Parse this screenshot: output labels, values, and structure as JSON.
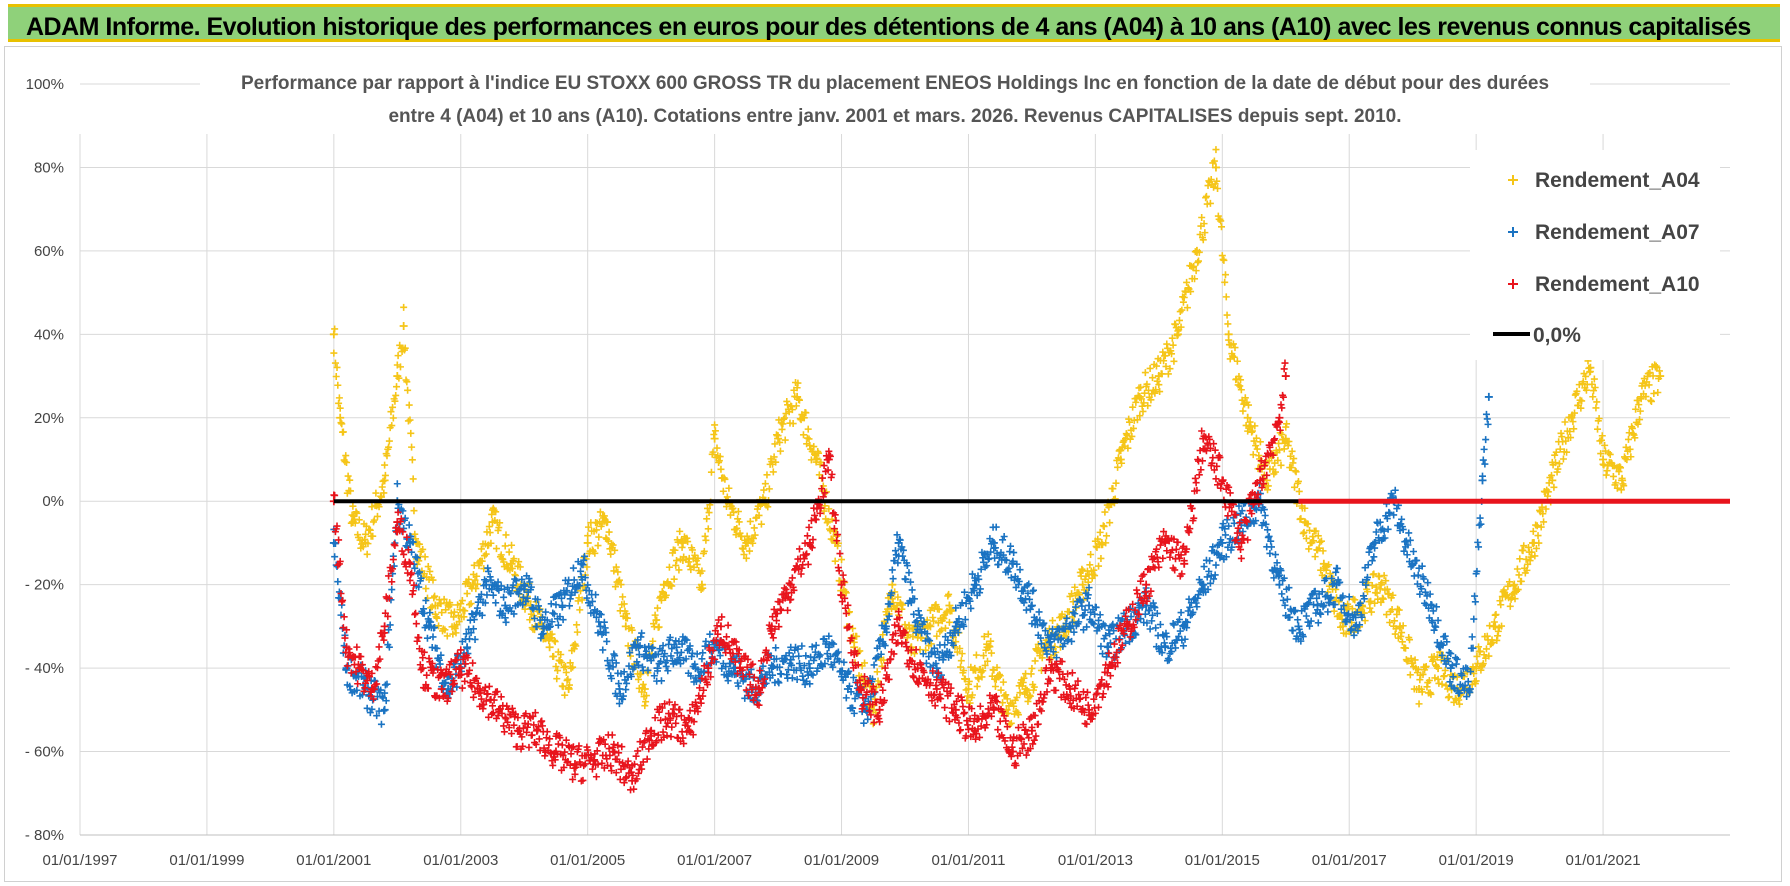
{
  "header": {
    "title": "ADAM Informe. Evolution historique des performances en euros pour des détentions de 4 ans (A04) à 10 ans (A10) avec les revenus connus capitalisés"
  },
  "colors": {
    "a04": "#f5c518",
    "a07": "#1a73c2",
    "a10": "#e8141c",
    "zero": "#000000",
    "banner": "#8fd17a",
    "banner_border": "#e8c100"
  },
  "chart_data": {
    "type": "scatter",
    "title_line1": "Performance par rapport à l'indice EU STOXX 600 GROSS TR  du placement ENEOS Holdings Inc en fonction de la date de début pour des durées",
    "title_line2": "entre 4 (A04) et 10 ans (A10).  Cotations entre janv. 2001 et mars. 2026. Revenus CAPITALISES depuis sept. 2010.",
    "xlim": [
      1997.0,
      2023.0
    ],
    "ylim": [
      -80,
      100
    ],
    "x_ticks": [
      1997,
      1999,
      2001,
      2003,
      2005,
      2007,
      2009,
      2011,
      2013,
      2015,
      2017,
      2019,
      2021
    ],
    "x_tick_labels": [
      "01/01/1997",
      "01/01/1999",
      "01/01/2001",
      "01/01/2003",
      "01/01/2005",
      "01/01/2007",
      "01/01/2009",
      "01/01/2011",
      "01/01/2013",
      "01/01/2015",
      "01/01/2017",
      "01/01/2019",
      "01/01/2021"
    ],
    "y_ticks": [
      100,
      80,
      60,
      40,
      20,
      0,
      -20,
      -40,
      -60,
      -80
    ],
    "y_tick_labels": [
      "100%",
      "80%",
      "60%",
      "40%",
      "20%",
      "0%",
      "- 20%",
      "- 40%",
      "- 60%",
      "- 80%"
    ],
    "legend": {
      "position": "top-right",
      "zero_label": "0,0%"
    },
    "series": [
      {
        "name": "Rendement_A04",
        "key": "a04",
        "points": [
          [
            2001.0,
            40
          ],
          [
            2001.1,
            20
          ],
          [
            2001.3,
            -5
          ],
          [
            2001.5,
            -10
          ],
          [
            2001.8,
            5
          ],
          [
            2002.0,
            30
          ],
          [
            2002.1,
            42
          ],
          [
            2002.3,
            -10
          ],
          [
            2002.6,
            -25
          ],
          [
            2002.9,
            -30
          ],
          [
            2003.2,
            -20
          ],
          [
            2003.5,
            -5
          ],
          [
            2003.8,
            -15
          ],
          [
            2004.1,
            -25
          ],
          [
            2004.4,
            -35
          ],
          [
            2004.7,
            -45
          ],
          [
            2005.0,
            -10
          ],
          [
            2005.3,
            -5
          ],
          [
            2005.6,
            -30
          ],
          [
            2005.9,
            -45
          ],
          [
            2006.2,
            -20
          ],
          [
            2006.5,
            -10
          ],
          [
            2006.8,
            -20
          ],
          [
            2007.0,
            15
          ],
          [
            2007.2,
            0
          ],
          [
            2007.5,
            -10
          ],
          [
            2007.8,
            0
          ],
          [
            2008.0,
            15
          ],
          [
            2008.3,
            25
          ],
          [
            2008.6,
            10
          ],
          [
            2008.9,
            -10
          ],
          [
            2009.2,
            -35
          ],
          [
            2009.5,
            -50
          ],
          [
            2009.8,
            -20
          ],
          [
            2010.1,
            -35
          ],
          [
            2010.4,
            -30
          ],
          [
            2010.7,
            -25
          ],
          [
            2011.0,
            -45
          ],
          [
            2011.3,
            -35
          ],
          [
            2011.6,
            -50
          ],
          [
            2011.9,
            -45
          ],
          [
            2012.2,
            -35
          ],
          [
            2012.5,
            -30
          ],
          [
            2012.8,
            -20
          ],
          [
            2013.1,
            -10
          ],
          [
            2013.4,
            10
          ],
          [
            2013.7,
            25
          ],
          [
            2014.0,
            30
          ],
          [
            2014.3,
            40
          ],
          [
            2014.6,
            60
          ],
          [
            2014.9,
            80
          ],
          [
            2015.1,
            40
          ],
          [
            2015.4,
            20
          ],
          [
            2015.7,
            5
          ],
          [
            2016.0,
            15
          ],
          [
            2016.3,
            -5
          ],
          [
            2016.6,
            -15
          ],
          [
            2016.9,
            -30
          ],
          [
            2017.2,
            -25
          ],
          [
            2017.5,
            -20
          ],
          [
            2017.8,
            -30
          ],
          [
            2018.1,
            -45
          ],
          [
            2018.4,
            -40
          ],
          [
            2018.7,
            -45
          ],
          [
            2019.0,
            -40
          ],
          [
            2019.3,
            -30
          ],
          [
            2019.6,
            -20
          ],
          [
            2019.9,
            -10
          ],
          [
            2020.2,
            5
          ],
          [
            2020.5,
            20
          ],
          [
            2020.8,
            32
          ],
          [
            2021.0,
            10
          ],
          [
            2021.3,
            5
          ],
          [
            2021.6,
            25
          ],
          [
            2021.9,
            30
          ]
        ]
      },
      {
        "name": "Rendement_A07",
        "key": "a07",
        "points": [
          [
            2001.0,
            -10
          ],
          [
            2001.2,
            -40
          ],
          [
            2001.5,
            -45
          ],
          [
            2001.8,
            -50
          ],
          [
            2002.0,
            0
          ],
          [
            2002.2,
            -10
          ],
          [
            2002.5,
            -30
          ],
          [
            2002.8,
            -45
          ],
          [
            2003.1,
            -35
          ],
          [
            2003.4,
            -20
          ],
          [
            2003.7,
            -25
          ],
          [
            2004.0,
            -20
          ],
          [
            2004.3,
            -30
          ],
          [
            2004.6,
            -25
          ],
          [
            2004.9,
            -15
          ],
          [
            2005.2,
            -30
          ],
          [
            2005.5,
            -45
          ],
          [
            2005.8,
            -35
          ],
          [
            2006.1,
            -40
          ],
          [
            2006.4,
            -35
          ],
          [
            2006.7,
            -40
          ],
          [
            2007.0,
            -35
          ],
          [
            2007.3,
            -40
          ],
          [
            2007.6,
            -45
          ],
          [
            2007.9,
            -40
          ],
          [
            2008.2,
            -38
          ],
          [
            2008.5,
            -40
          ],
          [
            2008.8,
            -35
          ],
          [
            2009.1,
            -45
          ],
          [
            2009.4,
            -50
          ],
          [
            2009.7,
            -30
          ],
          [
            2009.9,
            -10
          ],
          [
            2010.2,
            -30
          ],
          [
            2010.5,
            -40
          ],
          [
            2010.8,
            -30
          ],
          [
            2011.1,
            -20
          ],
          [
            2011.4,
            -10
          ],
          [
            2011.7,
            -15
          ],
          [
            2012.0,
            -25
          ],
          [
            2012.3,
            -35
          ],
          [
            2012.6,
            -30
          ],
          [
            2012.9,
            -25
          ],
          [
            2013.2,
            -35
          ],
          [
            2013.5,
            -30
          ],
          [
            2013.8,
            -25
          ],
          [
            2014.1,
            -35
          ],
          [
            2014.4,
            -30
          ],
          [
            2014.7,
            -20
          ],
          [
            2015.0,
            -10
          ],
          [
            2015.3,
            -5
          ],
          [
            2015.6,
            0
          ],
          [
            2015.9,
            -20
          ],
          [
            2016.2,
            -30
          ],
          [
            2016.5,
            -25
          ],
          [
            2016.8,
            -20
          ],
          [
            2017.1,
            -30
          ],
          [
            2017.4,
            -10
          ],
          [
            2017.7,
            0
          ],
          [
            2018.0,
            -15
          ],
          [
            2018.3,
            -25
          ],
          [
            2018.6,
            -40
          ],
          [
            2018.9,
            -45
          ],
          [
            2019.1,
            5
          ],
          [
            2019.2,
            25
          ]
        ]
      },
      {
        "name": "Rendement_A10",
        "key": "a10",
        "points": [
          [
            2001.0,
            0
          ],
          [
            2001.2,
            -35
          ],
          [
            2001.4,
            -40
          ],
          [
            2001.6,
            -45
          ],
          [
            2001.8,
            -30
          ],
          [
            2002.0,
            -5
          ],
          [
            2002.2,
            -15
          ],
          [
            2002.4,
            -40
          ],
          [
            2002.7,
            -45
          ],
          [
            2003.0,
            -40
          ],
          [
            2003.3,
            -45
          ],
          [
            2003.6,
            -50
          ],
          [
            2003.9,
            -55
          ],
          [
            2004.2,
            -55
          ],
          [
            2004.5,
            -60
          ],
          [
            2004.8,
            -63
          ],
          [
            2005.1,
            -62
          ],
          [
            2005.4,
            -60
          ],
          [
            2005.7,
            -67
          ],
          [
            2006.0,
            -55
          ],
          [
            2006.3,
            -52
          ],
          [
            2006.6,
            -55
          ],
          [
            2006.9,
            -40
          ],
          [
            2007.1,
            -30
          ],
          [
            2007.4,
            -40
          ],
          [
            2007.7,
            -45
          ],
          [
            2007.9,
            -30
          ],
          [
            2008.2,
            -20
          ],
          [
            2008.5,
            -10
          ],
          [
            2008.8,
            10
          ],
          [
            2009.0,
            -20
          ],
          [
            2009.3,
            -45
          ],
          [
            2009.6,
            -50
          ],
          [
            2009.9,
            -30
          ],
          [
            2010.2,
            -40
          ],
          [
            2010.5,
            -45
          ],
          [
            2010.8,
            -50
          ],
          [
            2011.1,
            -55
          ],
          [
            2011.4,
            -50
          ],
          [
            2011.7,
            -60
          ],
          [
            2012.0,
            -55
          ],
          [
            2012.3,
            -40
          ],
          [
            2012.6,
            -45
          ],
          [
            2012.9,
            -50
          ],
          [
            2013.2,
            -40
          ],
          [
            2013.5,
            -30
          ],
          [
            2013.8,
            -20
          ],
          [
            2014.1,
            -10
          ],
          [
            2014.4,
            -15
          ],
          [
            2014.7,
            15
          ],
          [
            2015.0,
            5
          ],
          [
            2015.3,
            -10
          ],
          [
            2015.6,
            5
          ],
          [
            2015.9,
            20
          ],
          [
            2016.0,
            30
          ]
        ]
      }
    ],
    "zero_line": {
      "name": "0,0%",
      "y": 0,
      "x_from": 2001.0,
      "x_to": 2016.2
    },
    "red_flat_segment": {
      "y": 0,
      "x_from": 2016.2,
      "x_to": 2023.0
    }
  }
}
